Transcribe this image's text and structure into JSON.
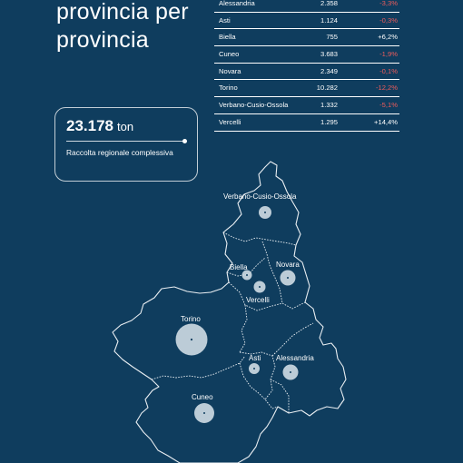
{
  "title": {
    "line1": "provincia per",
    "line2": "provincia"
  },
  "table": [
    {
      "name": "Alessandria",
      "value": "2.358",
      "change": "-3,3%",
      "negative": true
    },
    {
      "name": "Asti",
      "value": "1.124",
      "change": "-0,3%",
      "negative": true
    },
    {
      "name": "Biella",
      "value": "755",
      "change": "+6,2%",
      "negative": false
    },
    {
      "name": "Cuneo",
      "value": "3.683",
      "change": "-1,9%",
      "negative": true
    },
    {
      "name": "Novara",
      "value": "2.349",
      "change": "-0,1%",
      "negative": true
    },
    {
      "name": "Torino",
      "value": "10.282",
      "change": "-12,2%",
      "negative": true
    },
    {
      "name": "Verbano-Cusio-Ossola",
      "value": "1.332",
      "change": "-5,1%",
      "negative": true
    },
    {
      "name": "Vercelli",
      "value": "1.295",
      "change": "+14,4%",
      "negative": false
    }
  ],
  "summary": {
    "value": "23.178",
    "unit": "ton",
    "caption": "Raccolta regionale complessiva"
  },
  "map": {
    "labels": {
      "vco": "Verbano-Cusio-Ossola",
      "biella": "Biella",
      "novara": "Novara",
      "vercelli": "Vercelli",
      "torino": "Torino",
      "asti": "Asti",
      "alessandria": "Alessandria",
      "cuneo": "Cuneo"
    }
  },
  "colors": {
    "background": "#0f3d5e",
    "negative": "#ee5c5c",
    "bubble": "#cfdbe4"
  }
}
